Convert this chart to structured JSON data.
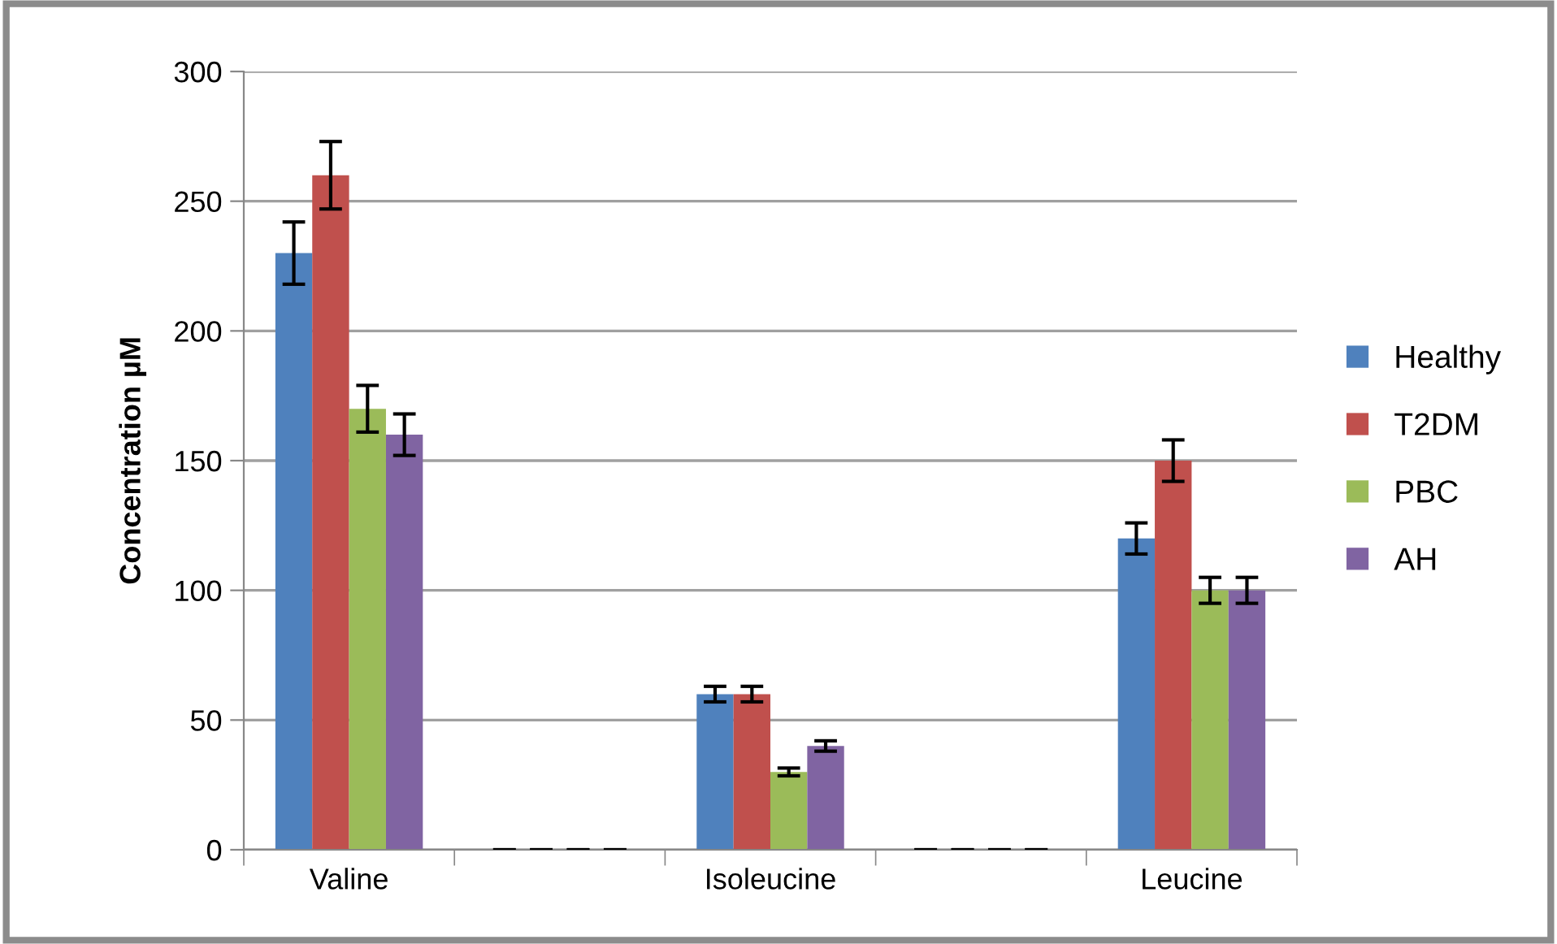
{
  "chart_data": {
    "type": "bar",
    "ylabel": "Concentration µM",
    "categories": [
      "Valine",
      null,
      "Isoleucine",
      null,
      "Leucine"
    ],
    "series": [
      {
        "name": "Healthy",
        "color": "#4f81bd",
        "values": [
          230,
          0,
          60,
          0,
          120
        ],
        "errors": [
          12,
          0,
          3,
          0,
          6
        ]
      },
      {
        "name": "T2DM",
        "color": "#c0504d",
        "values": [
          260,
          0,
          60,
          0,
          150
        ],
        "errors": [
          13,
          0,
          3,
          0,
          8
        ]
      },
      {
        "name": "PBC",
        "color": "#9bbb59",
        "values": [
          170,
          0,
          30,
          0,
          100
        ],
        "errors": [
          9,
          0,
          1.5,
          0,
          5
        ]
      },
      {
        "name": "AH",
        "color": "#8064a2",
        "values": [
          160,
          0,
          40,
          0,
          100
        ],
        "errors": [
          8,
          0,
          2,
          0,
          5
        ]
      }
    ],
    "ylim": [
      0,
      300
    ],
    "yticks": [
      0,
      50,
      100,
      150,
      200,
      250,
      300
    ],
    "grid": "y",
    "legend": "right"
  }
}
